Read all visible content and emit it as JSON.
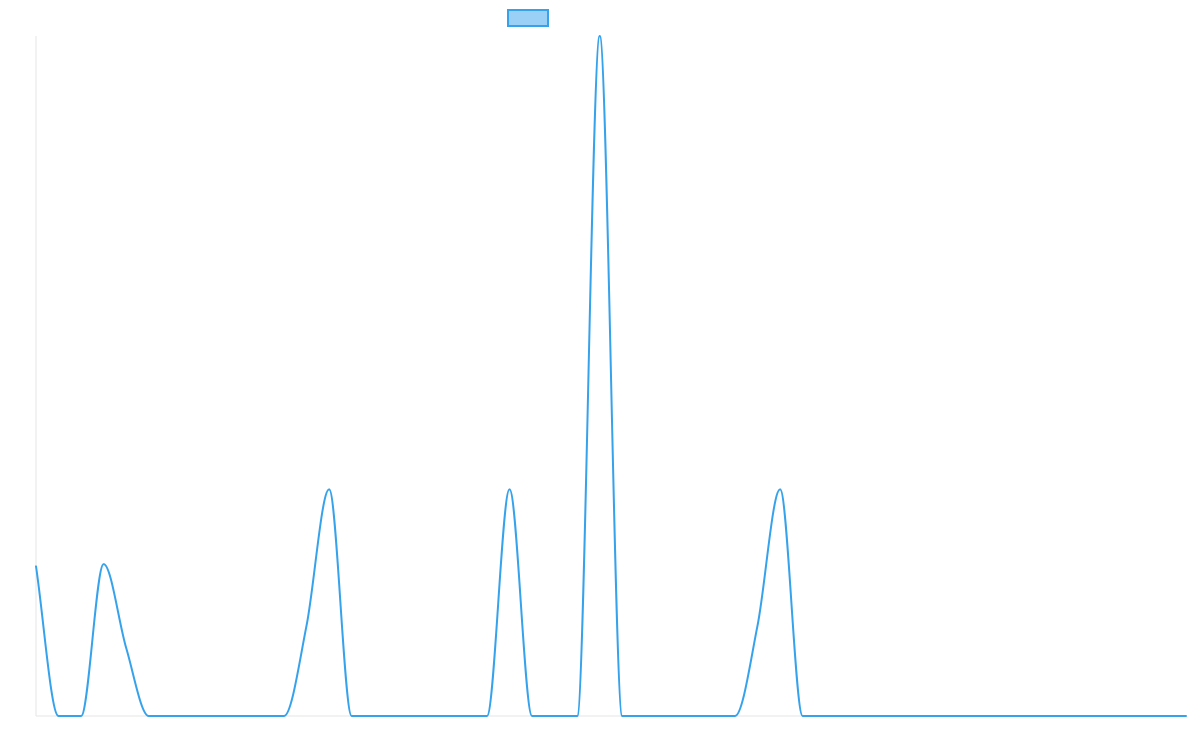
{
  "chart_data": {
    "type": "line",
    "title": "",
    "xlabel": "",
    "ylabel": "",
    "grid": false,
    "legend": {
      "placement": "top-center",
      "entries": [
        {
          "label": ""
        }
      ]
    },
    "xlim": [
      0,
      51
    ],
    "ylim": [
      0,
      3
    ],
    "x": [
      0,
      1,
      2,
      3,
      4,
      5,
      6,
      7,
      8,
      9,
      10,
      11,
      12,
      13,
      14,
      15,
      16,
      17,
      18,
      19,
      20,
      21,
      22,
      23,
      24,
      25,
      26,
      27,
      28,
      29,
      30,
      31,
      32,
      33,
      34,
      35,
      36,
      37,
      38,
      39,
      40,
      41,
      42,
      43,
      44,
      45,
      46,
      47,
      48,
      49,
      50,
      51
    ],
    "series": [
      {
        "name": "",
        "values": [
          0.66,
          0,
          0,
          0.67,
          0.3,
          0,
          0,
          0,
          0,
          0,
          0,
          0,
          0.4,
          1,
          0,
          0,
          0,
          0,
          0,
          0,
          0,
          1,
          0,
          0,
          0,
          3,
          0,
          0,
          0,
          0,
          0,
          0,
          0.4,
          1,
          0,
          0,
          0,
          0,
          0,
          0,
          0,
          0,
          0,
          0,
          0,
          0,
          0,
          0,
          0,
          0,
          0,
          0
        ],
        "color": "#36a2eb",
        "legend_fill": "#9ad0f5"
      }
    ]
  }
}
